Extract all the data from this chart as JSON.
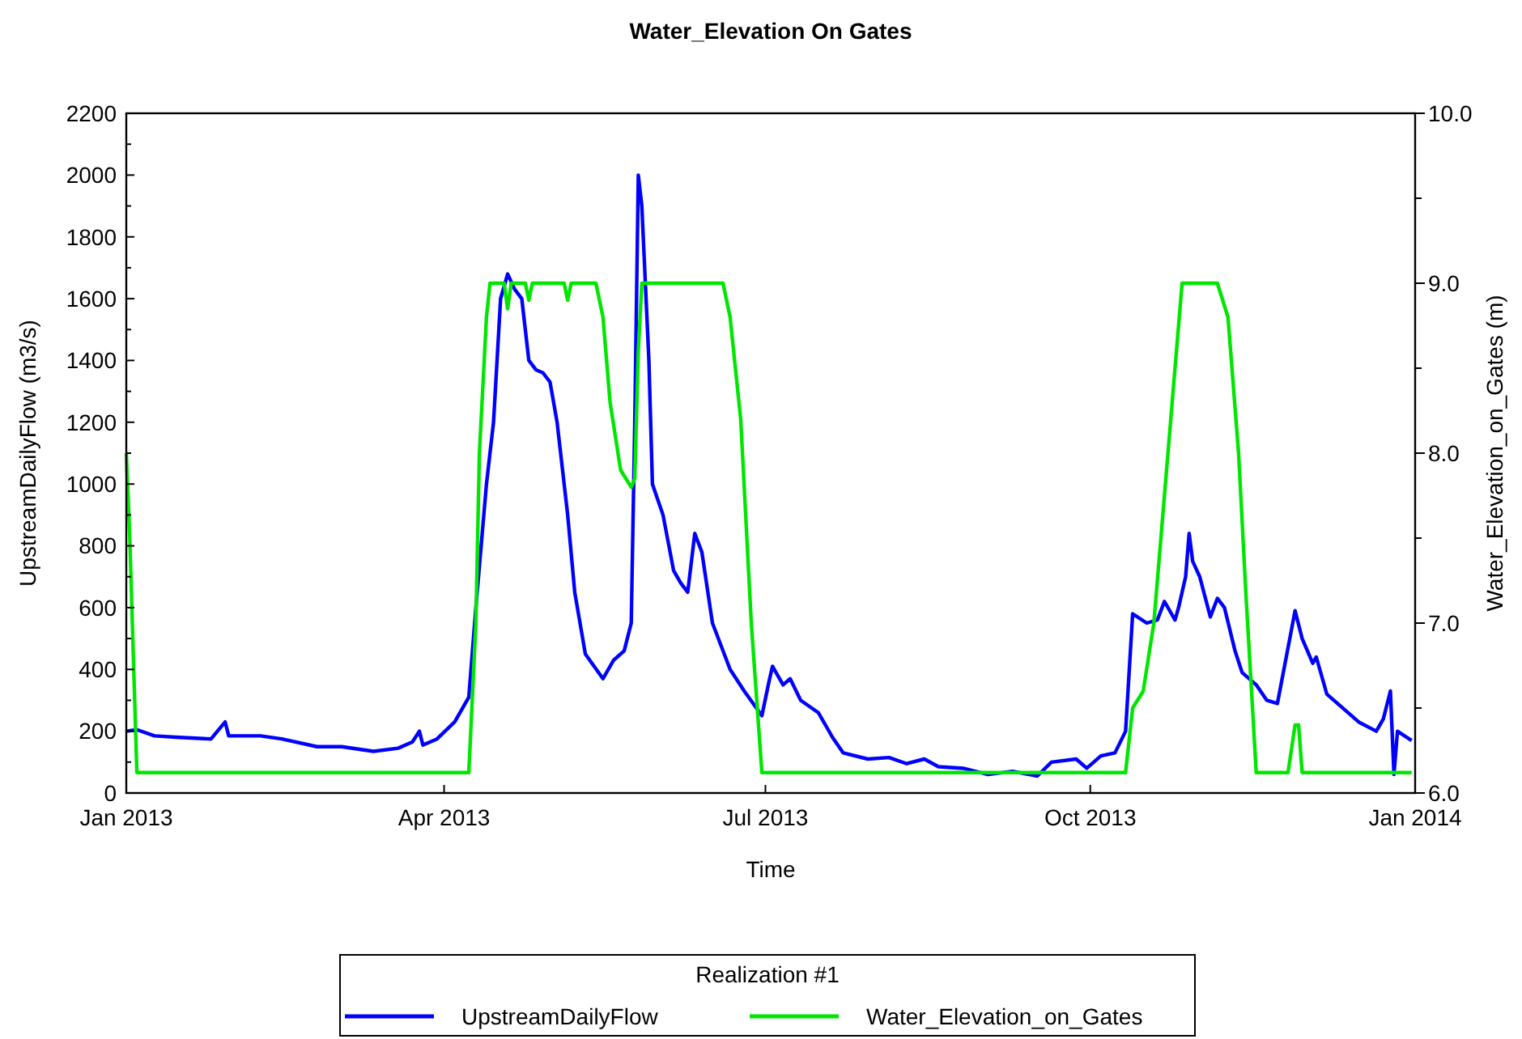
{
  "chart_data": {
    "type": "line",
    "title": "Water_Elevation On Gates",
    "xlabel": "Time",
    "ylabel": "UpstreamDailyFlow (m3/s)",
    "y2label": "Water_Elevation_on_Gates (m)",
    "legend_title": "Realization #1",
    "legend": "bottom",
    "grid": false,
    "line_style": "solid",
    "xlim": [
      "2013-01-01",
      "2014-01-01"
    ],
    "xticks": [
      {
        "value": "2013-01-01",
        "label": "Jan 2013"
      },
      {
        "value": "2013-04-01",
        "label": "Apr 2013"
      },
      {
        "value": "2013-07-01",
        "label": "Jul 2013"
      },
      {
        "value": "2013-10-01",
        "label": "Oct 2013"
      },
      {
        "value": "2014-01-01",
        "label": "Jan 2014"
      }
    ],
    "ylim": [
      0,
      2200
    ],
    "yticks": [
      0,
      {
        "value": 100,
        "label": null
      },
      200,
      {
        "value": 300,
        "label": null
      },
      400,
      {
        "value": 500,
        "label": null
      },
      600,
      {
        "value": 700,
        "label": null
      },
      800,
      {
        "value": 900,
        "label": null
      },
      1000,
      {
        "value": 1100,
        "label": null
      },
      1200,
      {
        "value": 1300,
        "label": null
      },
      1400,
      {
        "value": 1500,
        "label": null
      },
      1600,
      {
        "value": 1700,
        "label": null
      },
      1800,
      {
        "value": 1900,
        "label": null
      },
      2000,
      {
        "value": 2100,
        "label": null
      },
      2200
    ],
    "y2lim": [
      6,
      10
    ],
    "y2ticks": [
      {
        "value": 6,
        "label": "6.0"
      },
      {
        "value": 6.5,
        "label": null
      },
      {
        "value": 7,
        "label": "7.0"
      },
      {
        "value": 7.5,
        "label": null
      },
      {
        "value": 8,
        "label": "8.0"
      },
      {
        "value": 8.5,
        "label": null
      },
      {
        "value": 9,
        "label": "9.0"
      },
      {
        "value": 9.5,
        "label": null
      },
      {
        "value": 10,
        "label": "10.0"
      }
    ],
    "series": [
      {
        "name": "UpstreamDailyFlow",
        "color": "#0000ff",
        "x": [
          "2013-01-01",
          "2013-01-04",
          "2013-01-09",
          "2013-01-16",
          "2013-01-25",
          "2013-01-29",
          "2013-01-30",
          "2013-02-08",
          "2013-02-14",
          "2013-02-24",
          "2013-03-03",
          "2013-03-12",
          "2013-03-19",
          "2013-03-23",
          "2013-03-25",
          "2013-03-26",
          "2013-03-30",
          "2013-04-04",
          "2013-04-08",
          "2013-04-10",
          "2013-04-13",
          "2013-04-15",
          "2013-04-17",
          "2013-04-19",
          "2013-04-21",
          "2013-04-23",
          "2013-04-25",
          "2013-04-27",
          "2013-04-29",
          "2013-05-01",
          "2013-05-03",
          "2013-05-06",
          "2013-05-08",
          "2013-05-11",
          "2013-05-16",
          "2013-05-19",
          "2013-05-22",
          "2013-05-24",
          "2013-05-25",
          "2013-05-26",
          "2013-05-27",
          "2013-05-29",
          "2013-05-30",
          "2013-06-02",
          "2013-06-05",
          "2013-06-07",
          "2013-06-09",
          "2013-06-11",
          "2013-06-13",
          "2013-06-16",
          "2013-06-21",
          "2013-06-25",
          "2013-06-30",
          "2013-07-02",
          "2013-07-03",
          "2013-07-06",
          "2013-07-08",
          "2013-07-11",
          "2013-07-16",
          "2013-07-20",
          "2013-07-23",
          "2013-07-30",
          "2013-08-05",
          "2013-08-10",
          "2013-08-15",
          "2013-08-19",
          "2013-08-26",
          "2013-09-02",
          "2013-09-09",
          "2013-09-16",
          "2013-09-20",
          "2013-09-27",
          "2013-09-30",
          "2013-10-04",
          "2013-10-08",
          "2013-10-11",
          "2013-10-13",
          "2013-10-17",
          "2013-10-20",
          "2013-10-22",
          "2013-10-25",
          "2013-10-26",
          "2013-10-28",
          "2013-10-29",
          "2013-10-30",
          "2013-11-01",
          "2013-11-04",
          "2013-11-06",
          "2013-11-08",
          "2013-11-11",
          "2013-11-13",
          "2013-11-17",
          "2013-11-20",
          "2013-11-23",
          "2013-11-26",
          "2013-11-28",
          "2013-11-30",
          "2013-12-03",
          "2013-12-04",
          "2013-12-07",
          "2013-12-12",
          "2013-12-16",
          "2013-12-21",
          "2013-12-23",
          "2013-12-25",
          "2013-12-26",
          "2013-12-27",
          "2013-12-31"
        ],
        "values": [
          200,
          205,
          185,
          180,
          175,
          230,
          185,
          185,
          175,
          150,
          150,
          135,
          145,
          165,
          200,
          155,
          175,
          230,
          310,
          600,
          1000,
          1200,
          1600,
          1680,
          1630,
          1600,
          1400,
          1370,
          1360,
          1330,
          1200,
          900,
          650,
          450,
          370,
          430,
          460,
          550,
          1200,
          2000,
          1900,
          1400,
          1000,
          900,
          720,
          680,
          650,
          840,
          780,
          550,
          400,
          330,
          250,
          360,
          410,
          350,
          370,
          300,
          260,
          180,
          130,
          110,
          115,
          95,
          110,
          85,
          80,
          60,
          70,
          55,
          100,
          110,
          80,
          120,
          130,
          200,
          580,
          550,
          560,
          620,
          560,
          600,
          700,
          840,
          750,
          700,
          570,
          630,
          600,
          460,
          390,
          350,
          300,
          290,
          470,
          590,
          500,
          420,
          440,
          320,
          270,
          230,
          200,
          240,
          330,
          60,
          200,
          170
        ]
      },
      {
        "name": "Water_Elevation_on_Gates",
        "color": "#00e600",
        "axis": "y2",
        "x": [
          "2013-01-01",
          "2013-01-02",
          "2013-01-03",
          "2013-01-04",
          "2013-04-08",
          "2013-04-10",
          "2013-04-11",
          "2013-04-13",
          "2013-04-14",
          "2013-04-18",
          "2013-04-19",
          "2013-04-20",
          "2013-04-24",
          "2013-04-25",
          "2013-04-26",
          "2013-05-05",
          "2013-05-06",
          "2013-05-07",
          "2013-05-14",
          "2013-05-16",
          "2013-05-18",
          "2013-05-21",
          "2013-05-24",
          "2013-05-25",
          "2013-05-26",
          "2013-05-27",
          "2013-06-19",
          "2013-06-21",
          "2013-06-24",
          "2013-06-27",
          "2013-06-30",
          "2013-10-11",
          "2013-10-13",
          "2013-10-16",
          "2013-10-19",
          "2013-10-21",
          "2013-10-25",
          "2013-10-27",
          "2013-11-06",
          "2013-11-09",
          "2013-11-12",
          "2013-11-14",
          "2013-11-17",
          "2013-11-26",
          "2013-11-28",
          "2013-11-29",
          "2013-11-30",
          "2013-12-31"
        ],
        "values": [
          8.0,
          7.5,
          6.8,
          6.12,
          6.12,
          7.0,
          8.0,
          8.8,
          9.0,
          9.0,
          8.85,
          9.0,
          9.0,
          8.9,
          9.0,
          9.0,
          8.9,
          9.0,
          9.0,
          8.8,
          8.3,
          7.9,
          7.8,
          7.85,
          8.6,
          9.0,
          9.0,
          8.8,
          8.2,
          7.0,
          6.12,
          6.12,
          6.5,
          6.6,
          7.0,
          7.5,
          8.5,
          9.0,
          9.0,
          8.8,
          8.0,
          7.2,
          6.12,
          6.12,
          6.4,
          6.4,
          6.12,
          6.12
        ]
      }
    ]
  }
}
